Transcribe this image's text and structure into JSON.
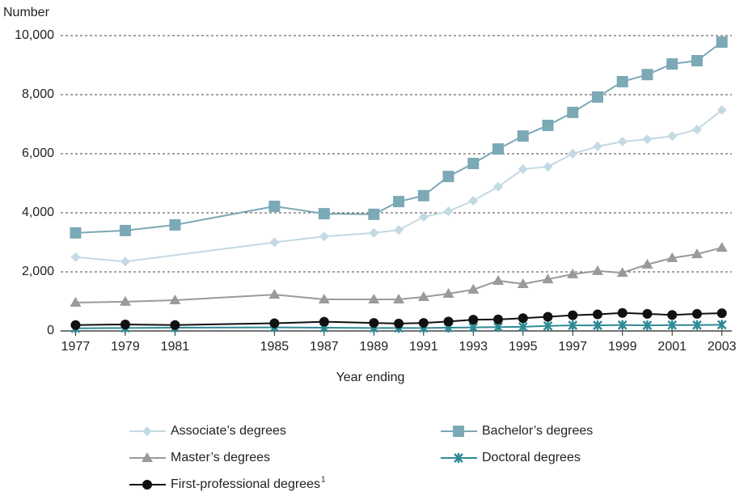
{
  "chart_data": {
    "type": "line",
    "y_label": "Number",
    "x_label": "Year ending",
    "x": [
      1977,
      1979,
      1981,
      1985,
      1987,
      1989,
      1990,
      1991,
      1992,
      1993,
      1994,
      1995,
      1996,
      1997,
      1998,
      1999,
      2000,
      2001,
      2002,
      2003
    ],
    "series": [
      {
        "name": "Associate’s degrees",
        "color": "#c3d9e3",
        "marker": "diamond",
        "x": [
          1977,
          1979,
          1985,
          1987,
          1989,
          1990,
          1991,
          1992,
          1993,
          1994,
          1995,
          1996,
          1997,
          1998,
          1999,
          2000,
          2001,
          2002,
          2003
        ],
        "values": [
          2500,
          2350,
          3000,
          3200,
          3320,
          3420,
          3860,
          4050,
          4410,
          4880,
          5480,
          5560,
          6000,
          6250,
          6410,
          6490,
          6600,
          6820,
          7480
        ]
      },
      {
        "name": "Bachelor’s degrees",
        "color": "#7ba9b6",
        "marker": "square",
        "values": [
          3320,
          3400,
          3590,
          4220,
          3970,
          3950,
          4380,
          4580,
          5230,
          5670,
          6160,
          6600,
          6960,
          7400,
          7920,
          8440,
          8680,
          9040,
          9150,
          9780
        ]
      },
      {
        "name": "Master’s degrees",
        "color": "#9a9a9a",
        "marker": "triangle",
        "values": [
          960,
          990,
          1040,
          1230,
          1070,
          1070,
          1070,
          1150,
          1260,
          1400,
          1700,
          1590,
          1750,
          1920,
          2030,
          1970,
          2250,
          2470,
          2600,
          2820
        ]
      },
      {
        "name": "Doctoral degrees",
        "color": "#2f8a96",
        "marker": "star",
        "values": [
          90,
          100,
          110,
          120,
          110,
          100,
          100,
          100,
          110,
          120,
          130,
          140,
          170,
          190,
          190,
          200,
          190,
          200,
          200,
          210
        ]
      },
      {
        "name": "First-professional degrees",
        "footnote_mark": "1",
        "color": "#111111",
        "marker": "circle",
        "values": [
          200,
          220,
          200,
          260,
          310,
          270,
          250,
          270,
          320,
          380,
          390,
          430,
          480,
          530,
          560,
          610,
          580,
          540,
          580,
          600
        ]
      }
    ],
    "xlim": [
      1976.4,
      2003.4
    ],
    "xticks": [
      1977,
      1979,
      1981,
      1985,
      1987,
      1989,
      1991,
      1993,
      1995,
      1997,
      1999,
      2001,
      2003
    ],
    "ylim": [
      0,
      10000
    ],
    "yticks": [
      0,
      {
        "value": 2000,
        "label": "2,000"
      },
      {
        "value": 4000,
        "label": "4,000"
      },
      {
        "value": 6000,
        "label": "6,000"
      },
      {
        "value": 8000,
        "label": "8,000"
      },
      {
        "value": 10000,
        "label": "10,000"
      }
    ],
    "grid": true
  }
}
